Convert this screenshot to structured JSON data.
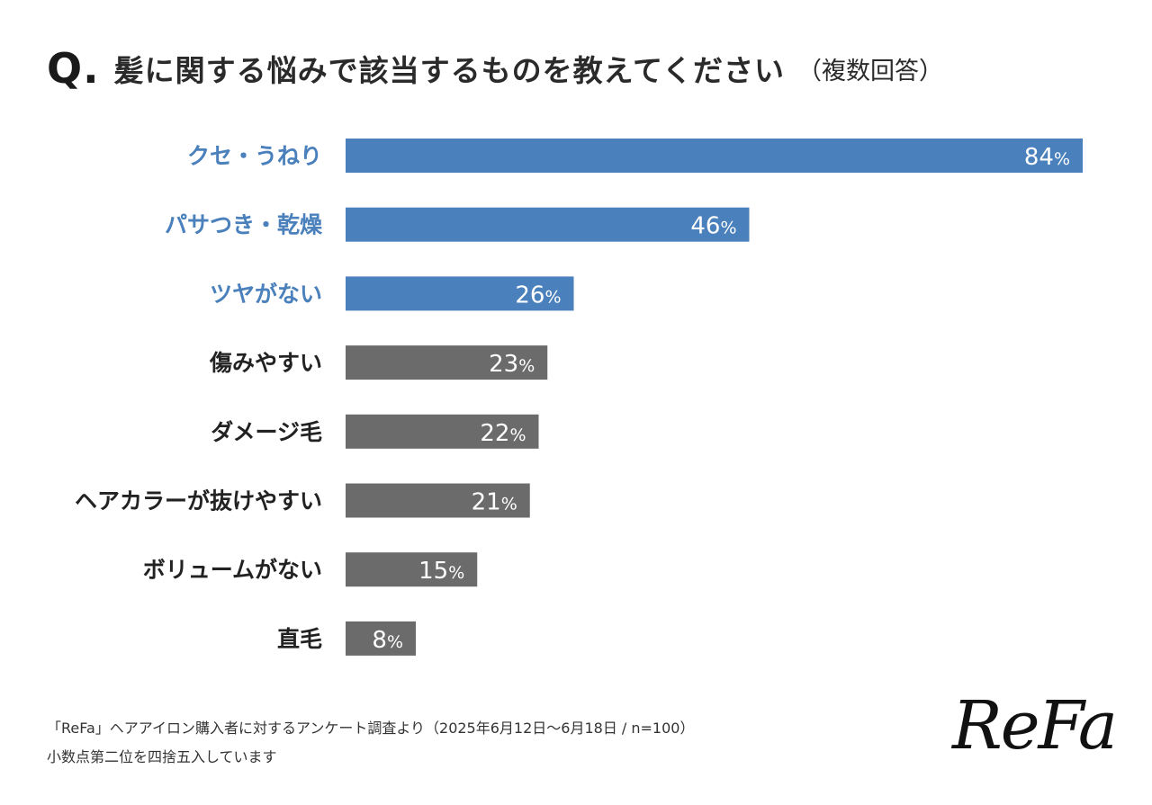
{
  "title": {
    "q_label": "Q.",
    "main": "髪に関する悩みで該当するものを教えてください",
    "note": "（複数回答）"
  },
  "chart_data": {
    "type": "bar",
    "orientation": "horizontal",
    "categories": [
      "クセ・うねり",
      "パサつき・乾燥",
      "ツヤがない",
      "傷みやすい",
      "ダメージ毛",
      "ヘアカラーが抜けやすい",
      "ボリュームがない",
      "直毛"
    ],
    "values": [
      84,
      46,
      26,
      23,
      22,
      21,
      15,
      8
    ],
    "value_labels": [
      "84",
      "46",
      "26",
      "23",
      "22",
      "21",
      "15",
      "8"
    ],
    "unit": "%",
    "highlight_top_n": 3,
    "xlim": [
      0,
      84
    ],
    "colors": {
      "highlight": "#4a80bb",
      "normal": "#6b6b6b",
      "highlight_label": "#4a80bb",
      "normal_label": "#222222",
      "value_text": "#ffffff"
    }
  },
  "footnote": {
    "line1": "「ReFa」ヘアアイロン購入者に対するアンケート調査より（2025年6月12日〜6月18日 / n=100）",
    "line2": "小数点第二位を四捨五入しています"
  },
  "logo": {
    "text": "ReFa"
  }
}
